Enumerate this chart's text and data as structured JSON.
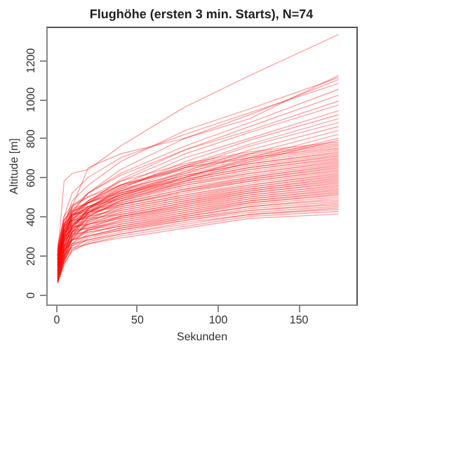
{
  "chart_data": {
    "type": "line",
    "title": "Flughöhe (ersten 3 min. Starts), N=74",
    "xlabel": "Sekunden",
    "ylabel": "Altitude [m]",
    "color": "#ff0000",
    "x": [
      1,
      5,
      10,
      20,
      40,
      80,
      120,
      175
    ],
    "xlim": [
      -6,
      186
    ],
    "ylim": [
      -50,
      1370
    ],
    "xticks": [
      0,
      50,
      100,
      150
    ],
    "yticks": [
      0,
      200,
      400,
      600,
      800,
      1000,
      1200
    ],
    "series": [
      {
        "values": [
          200,
          580,
          620,
          640,
          760,
          960,
          1120,
          1330
        ]
      },
      {
        "values": [
          150,
          300,
          450,
          650,
          720,
          800,
          900,
          1120
        ]
      },
      {
        "values": [
          180,
          350,
          480,
          560,
          680,
          840,
          950,
          1110
        ]
      },
      {
        "values": [
          120,
          280,
          420,
          520,
          640,
          800,
          920,
          1100
        ]
      },
      {
        "values": [
          220,
          400,
          520,
          600,
          700,
          820,
          930,
          1080
        ]
      },
      {
        "values": [
          160,
          330,
          430,
          520,
          620,
          760,
          880,
          1050
        ]
      },
      {
        "values": [
          100,
          260,
          380,
          470,
          590,
          740,
          860,
          1020
        ]
      },
      {
        "values": [
          200,
          360,
          450,
          520,
          610,
          740,
          840,
          990
        ]
      },
      {
        "values": [
          140,
          300,
          400,
          480,
          580,
          720,
          830,
          970
        ]
      },
      {
        "values": [
          180,
          320,
          410,
          480,
          560,
          700,
          800,
          940
        ]
      },
      {
        "values": [
          90,
          240,
          350,
          440,
          540,
          680,
          790,
          920
        ]
      },
      {
        "values": [
          210,
          340,
          420,
          470,
          550,
          660,
          770,
          900
        ]
      },
      {
        "values": [
          130,
          280,
          380,
          450,
          530,
          650,
          760,
          880
        ]
      },
      {
        "values": [
          170,
          300,
          390,
          440,
          510,
          630,
          740,
          860
        ]
      },
      {
        "values": [
          110,
          250,
          350,
          420,
          500,
          620,
          720,
          840
        ]
      },
      {
        "values": [
          190,
          320,
          400,
          450,
          510,
          600,
          700,
          820
        ]
      },
      {
        "values": [
          150,
          280,
          360,
          420,
          490,
          600,
          690,
          800
        ]
      },
      {
        "values": [
          80,
          220,
          320,
          400,
          480,
          580,
          680,
          790
        ]
      },
      {
        "values": [
          230,
          380,
          450,
          500,
          580,
          670,
          730,
          780
        ]
      },
      {
        "values": [
          120,
          300,
          400,
          470,
          560,
          660,
          720,
          772
        ]
      },
      {
        "values": [
          70,
          200,
          330,
          440,
          550,
          650,
          710,
          765
        ]
      },
      {
        "values": [
          180,
          350,
          420,
          480,
          560,
          650,
          700,
          758
        ]
      },
      {
        "values": [
          250,
          400,
          460,
          500,
          560,
          640,
          700,
          750
        ]
      },
      {
        "values": [
          90,
          220,
          340,
          440,
          530,
          630,
          690,
          745
        ]
      },
      {
        "values": [
          160,
          330,
          410,
          470,
          540,
          620,
          680,
          738
        ]
      },
      {
        "values": [
          200,
          360,
          430,
          470,
          530,
          610,
          670,
          730
        ]
      },
      {
        "values": [
          60,
          180,
          300,
          420,
          520,
          610,
          670,
          724
        ]
      },
      {
        "values": [
          140,
          300,
          390,
          450,
          520,
          600,
          660,
          718
        ]
      },
      {
        "values": [
          220,
          380,
          440,
          470,
          520,
          590,
          650,
          712
        ]
      },
      {
        "values": [
          100,
          240,
          350,
          430,
          510,
          590,
          650,
          706
        ]
      },
      {
        "values": [
          170,
          320,
          400,
          450,
          510,
          580,
          640,
          700
        ]
      },
      {
        "values": [
          80,
          200,
          320,
          420,
          500,
          580,
          640,
          694
        ]
      },
      {
        "values": [
          190,
          340,
          410,
          440,
          500,
          570,
          630,
          688
        ]
      },
      {
        "values": [
          130,
          270,
          370,
          430,
          490,
          570,
          620,
          682
        ]
      },
      {
        "values": [
          240,
          380,
          430,
          450,
          490,
          560,
          620,
          676
        ]
      },
      {
        "values": [
          70,
          190,
          300,
          400,
          480,
          560,
          610,
          670
        ]
      },
      {
        "values": [
          150,
          300,
          380,
          420,
          480,
          550,
          600,
          664
        ]
      },
      {
        "values": [
          200,
          350,
          410,
          430,
          470,
          540,
          600,
          658
        ]
      },
      {
        "values": [
          110,
          250,
          350,
          410,
          470,
          540,
          590,
          652
        ]
      },
      {
        "values": [
          60,
          170,
          280,
          380,
          460,
          530,
          590,
          646
        ]
      },
      {
        "values": [
          180,
          320,
          390,
          420,
          460,
          530,
          580,
          640
        ]
      },
      {
        "values": [
          130,
          270,
          360,
          410,
          460,
          520,
          580,
          634
        ]
      },
      {
        "values": [
          220,
          360,
          410,
          420,
          450,
          510,
          570,
          628
        ]
      },
      {
        "values": [
          90,
          220,
          320,
          390,
          450,
          510,
          560,
          622
        ]
      },
      {
        "values": [
          160,
          300,
          370,
          400,
          440,
          500,
          560,
          616
        ]
      },
      {
        "values": [
          70,
          180,
          290,
          370,
          440,
          500,
          550,
          610
        ]
      },
      {
        "values": [
          200,
          330,
          380,
          400,
          430,
          490,
          550,
          604
        ]
      },
      {
        "values": [
          120,
          250,
          340,
          380,
          430,
          490,
          540,
          598
        ]
      },
      {
        "values": [
          180,
          310,
          360,
          380,
          420,
          480,
          540,
          592
        ]
      },
      {
        "values": [
          80,
          200,
          300,
          360,
          420,
          480,
          530,
          586
        ]
      },
      {
        "values": [
          150,
          280,
          340,
          370,
          410,
          470,
          530,
          580
        ]
      },
      {
        "values": [
          230,
          350,
          380,
          390,
          410,
          470,
          520,
          574
        ]
      },
      {
        "values": [
          100,
          230,
          320,
          360,
          400,
          460,
          520,
          568
        ]
      },
      {
        "values": [
          60,
          160,
          260,
          340,
          400,
          460,
          510,
          562
        ]
      },
      {
        "values": [
          170,
          290,
          340,
          360,
          400,
          450,
          510,
          556
        ]
      },
      {
        "values": [
          120,
          240,
          310,
          350,
          390,
          450,
          500,
          550
        ]
      },
      {
        "values": [
          200,
          320,
          350,
          360,
          390,
          440,
          500,
          544
        ]
      },
      {
        "values": [
          80,
          190,
          280,
          330,
          380,
          440,
          490,
          538
        ]
      },
      {
        "values": [
          150,
          270,
          320,
          340,
          380,
          430,
          490,
          532
        ]
      },
      {
        "values": [
          100,
          220,
          290,
          330,
          370,
          430,
          480,
          526
        ]
      },
      {
        "values": [
          190,
          300,
          330,
          340,
          370,
          420,
          480,
          520
        ]
      },
      {
        "values": [
          70,
          170,
          260,
          310,
          360,
          420,
          470,
          514
        ]
      },
      {
        "values": [
          140,
          250,
          300,
          330,
          360,
          410,
          470,
          508
        ]
      },
      {
        "values": [
          110,
          220,
          280,
          320,
          350,
          410,
          460,
          500
        ]
      },
      {
        "values": [
          180,
          280,
          310,
          320,
          350,
          400,
          450,
          492
        ]
      },
      {
        "values": [
          80,
          180,
          250,
          300,
          340,
          400,
          450,
          484
        ]
      },
      {
        "values": [
          130,
          230,
          280,
          300,
          340,
          390,
          440,
          476
        ]
      },
      {
        "values": [
          60,
          150,
          230,
          290,
          330,
          390,
          430,
          468
        ]
      },
      {
        "values": [
          160,
          250,
          280,
          300,
          330,
          380,
          430,
          460
        ]
      },
      {
        "values": [
          100,
          200,
          250,
          280,
          320,
          380,
          420,
          452
        ]
      },
      {
        "values": [
          70,
          160,
          220,
          270,
          310,
          370,
          410,
          444
        ]
      },
      {
        "values": [
          140,
          230,
          260,
          280,
          310,
          360,
          410,
          436
        ]
      },
      {
        "values": [
          90,
          180,
          230,
          260,
          300,
          350,
          400,
          426
        ]
      },
      {
        "values": [
          120,
          200,
          240,
          260,
          290,
          340,
          390,
          412
        ]
      }
    ]
  }
}
